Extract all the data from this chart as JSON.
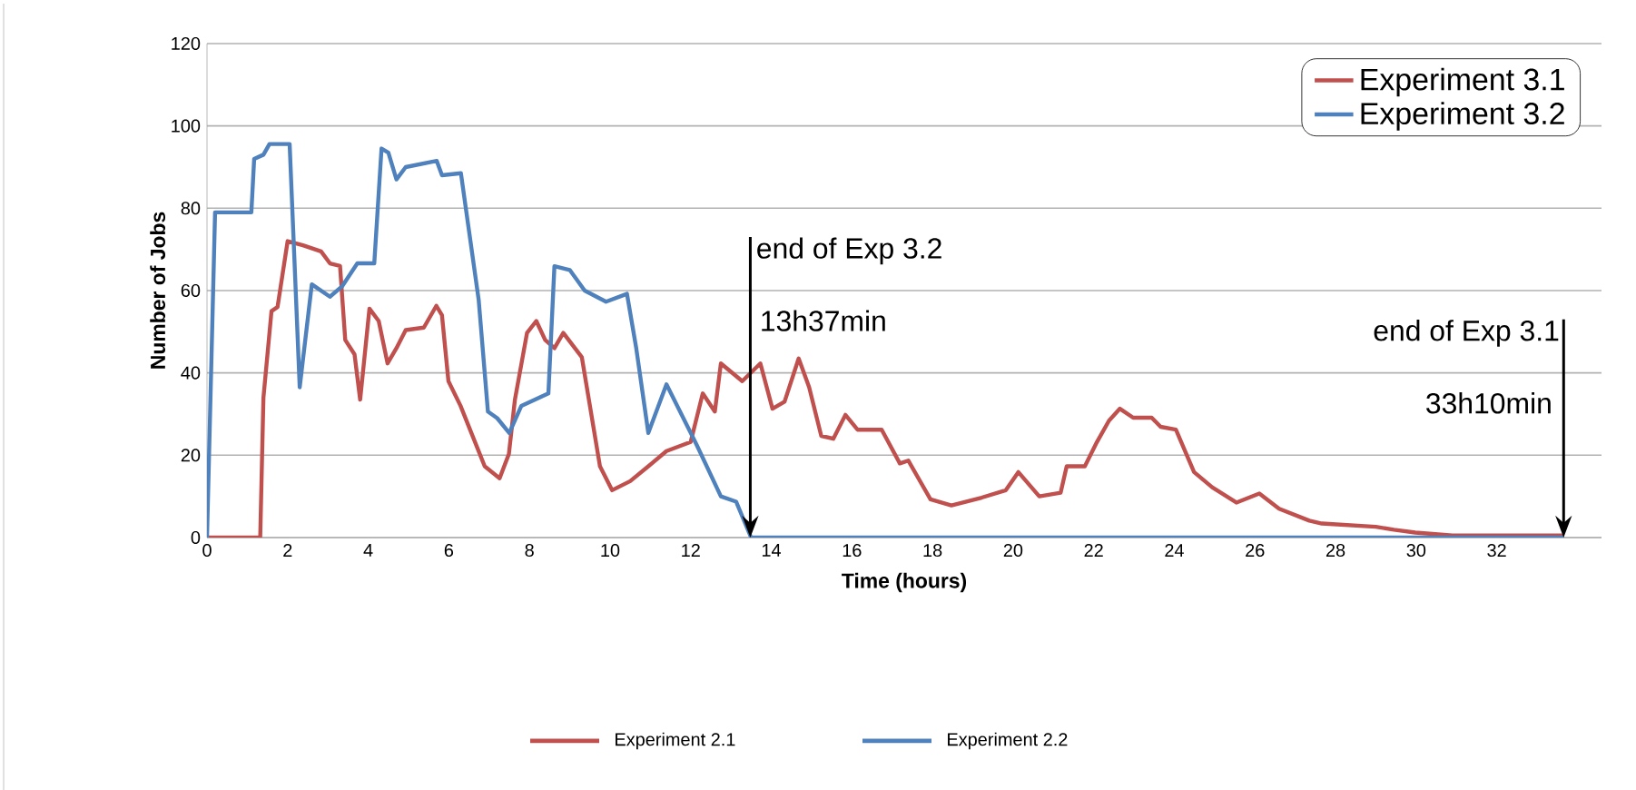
{
  "chart_data": {
    "type": "line",
    "xlabel": "Time (hours)",
    "ylabel": "Number of Jobs",
    "xlim": [
      0,
      34.6
    ],
    "xticks": [
      0,
      2,
      4,
      6,
      8,
      10,
      12,
      14,
      16,
      18,
      20,
      22,
      24,
      26,
      28,
      30,
      32
    ],
    "ylim": [
      0,
      120
    ],
    "yticks": [
      0,
      20,
      40,
      60,
      80,
      100,
      120
    ],
    "grid": "y",
    "legend": "top right",
    "series": [
      {
        "name": "Experiment 3.1",
        "color": "#c0504d",
        "x": [
          0,
          1.32,
          1.4,
          1.6,
          1.75,
          2.0,
          2.38,
          2.83,
          3.05,
          3.3,
          3.43,
          3.66,
          3.8,
          4.03,
          4.26,
          4.48,
          4.7,
          4.93,
          5.38,
          5.69,
          5.83,
          5.99,
          6.29,
          6.89,
          7.26,
          7.49,
          7.64,
          7.94,
          8.17,
          8.39,
          8.62,
          8.84,
          9.3,
          9.75,
          10.05,
          10.5,
          10.95,
          11.4,
          12.0,
          12.3,
          12.6,
          12.75,
          13.28,
          13.73,
          14.03,
          14.33,
          14.68,
          14.94,
          15.24,
          15.54,
          15.84,
          16.14,
          16.74,
          17.19,
          17.4,
          17.95,
          18.47,
          19.22,
          19.82,
          20.13,
          20.65,
          21.18,
          21.33,
          21.78,
          22.08,
          22.38,
          22.65,
          22.98,
          23.44,
          23.66,
          24.04,
          24.49,
          24.94,
          25.54,
          26.11,
          26.6,
          27.35,
          27.66,
          29.0,
          29.45,
          29.98,
          30.9,
          33.66
        ],
        "values": [
          0,
          0,
          34,
          55,
          56,
          72,
          71,
          69.5,
          66.6,
          66,
          48,
          44.5,
          33.5,
          55.6,
          52.6,
          42.3,
          46,
          50.4,
          51,
          56.3,
          54,
          38,
          32,
          17.3,
          14.4,
          20.3,
          33.5,
          49.7,
          52.6,
          48,
          46,
          49.7,
          43.8,
          17.3,
          11.5,
          13.7,
          17.3,
          21,
          23.2,
          35,
          30.6,
          42.3,
          38,
          42.3,
          31.3,
          33,
          43.5,
          36.5,
          24.7,
          24,
          29.8,
          26.2,
          26.2,
          18,
          18.7,
          9.3,
          7.8,
          9.7,
          11.5,
          15.9,
          10,
          10.9,
          17.3,
          17.3,
          23.2,
          28.4,
          31.3,
          29.1,
          29.1,
          26.9,
          26.2,
          15.9,
          12.2,
          8.5,
          10.7,
          7,
          4.1,
          3.4,
          2.6,
          1.9,
          1.2,
          0.5,
          0.5
        ]
      },
      {
        "name": "Experiment 3.2",
        "color": "#4f81bd",
        "x": [
          0,
          0.2,
          1.1,
          1.17,
          1.4,
          1.55,
          2.05,
          2.3,
          2.6,
          3.05,
          3.35,
          3.73,
          4.15,
          4.33,
          4.5,
          4.7,
          4.93,
          5.7,
          5.83,
          6.3,
          6.74,
          6.97,
          7.2,
          7.5,
          7.8,
          8.47,
          8.62,
          9.0,
          9.37,
          9.9,
          10.42,
          10.65,
          10.95,
          11.4,
          12.15,
          12.75,
          13.13,
          13.5,
          33.66
        ],
        "values": [
          0,
          79,
          79,
          92,
          93,
          95.6,
          95.6,
          36.5,
          61.5,
          58.5,
          61,
          66.6,
          66.6,
          94.5,
          93.5,
          87,
          90,
          91.5,
          88,
          88.5,
          57.8,
          30.6,
          29,
          25.4,
          32,
          35,
          65.9,
          65,
          60,
          57.3,
          59.2,
          46,
          25.4,
          37.2,
          22.5,
          10,
          8.7,
          0,
          0
        ]
      }
    ],
    "annotations": [
      {
        "text": "end of Exp 3.2",
        "x": 13.48,
        "y": 0
      },
      "13h37min",
      {
        "text": "end of Exp 3.1",
        "x": 33.66,
        "y": 0
      },
      "33h10min",
      "Experiment 2.1",
      "Experiment 2.2"
    ]
  }
}
